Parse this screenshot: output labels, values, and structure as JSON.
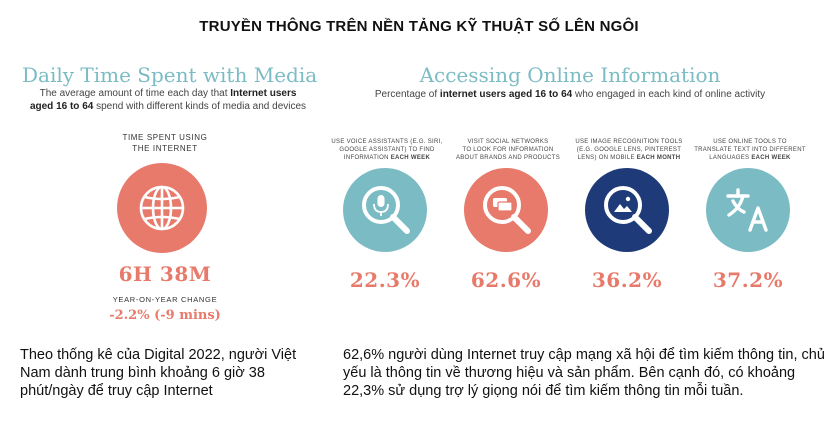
{
  "header": {
    "title": "TRUYỀN THÔNG TRÊN NỀN TẢNG KỸ THUẬT SỐ LÊN NGÔI"
  },
  "left_panel": {
    "title": "Daily Time Spent with Media",
    "subtitle_part1": "The average amount of time each day that ",
    "subtitle_bold": "Internet users aged 16 to 64",
    "subtitle_part2": " spend with different kinds of media and devices",
    "time_label_line1": "TIME SPENT USING",
    "time_label_line2": "THE INTERNET",
    "time_value": "6H 38M",
    "yoy_label": "YEAR-ON-YEAR CHANGE",
    "yoy_value": "-2.2% (-9 mins)",
    "icon": "globe-icon"
  },
  "right_panel": {
    "title": "Accessing Online Information",
    "subtitle_part1": "Percentage of ",
    "subtitle_bold": "internet users aged 16 to 64",
    "subtitle_part2": " who engaged in each kind of online activity",
    "stats": [
      {
        "caption_line1": "USE VOICE ASSISTANTS (E.G. SIRI,",
        "caption_line2": "GOOGLE ASSISTANT) TO FIND",
        "caption_line3": "INFORMATION ",
        "caption_bold": "EACH WEEK",
        "value": "22.3%",
        "icon": "microphone-icon",
        "color": "#7bbcc4"
      },
      {
        "caption_line1": "VISIT SOCIAL NETWORKS",
        "caption_line2": "TO LOOK FOR INFORMATION",
        "caption_line3": "ABOUT BRANDS AND PRODUCTS",
        "caption_bold": "",
        "value": "62.6%",
        "icon": "chat-search-icon",
        "color": "#e77a6a"
      },
      {
        "caption_line1": "USE IMAGE RECOGNITION TOOLS",
        "caption_line2": "(E.G. GOOGLE LENS, PINTEREST",
        "caption_line3": "LENS) ON MOBILE ",
        "caption_bold": "EACH MONTH",
        "value": "36.2%",
        "icon": "image-search-icon",
        "color": "#1e3a78"
      },
      {
        "caption_line1": "USE ONLINE TOOLS TO",
        "caption_line2": "TRANSLATE TEXT INTO DIFFERENT",
        "caption_line3": "LANGUAGES ",
        "caption_bold": "EACH WEEK",
        "value": "37.2%",
        "icon": "translate-icon",
        "color": "#7bbcc4"
      }
    ]
  },
  "paragraphs": {
    "left": "Theo thống kê của Digital 2022, người Việt Nam dành trung bình khoảng 6 giờ 38 phút/ngày để truy cập Internet",
    "right": "62,6% người dùng Internet truy cập mạng xã hội để tìm kiếm thông tin, chủ yếu là thông tin về thương hiệu và sản phẩm. Bên cạnh đó, có khoảng 22,3% sử dụng trợ lý giọng nói để tìm kiếm thông tin mỗi tuần."
  },
  "colors": {
    "title_teal": "#7bbcc4",
    "accent_coral": "#e77a6a",
    "navy": "#1e3a78"
  }
}
